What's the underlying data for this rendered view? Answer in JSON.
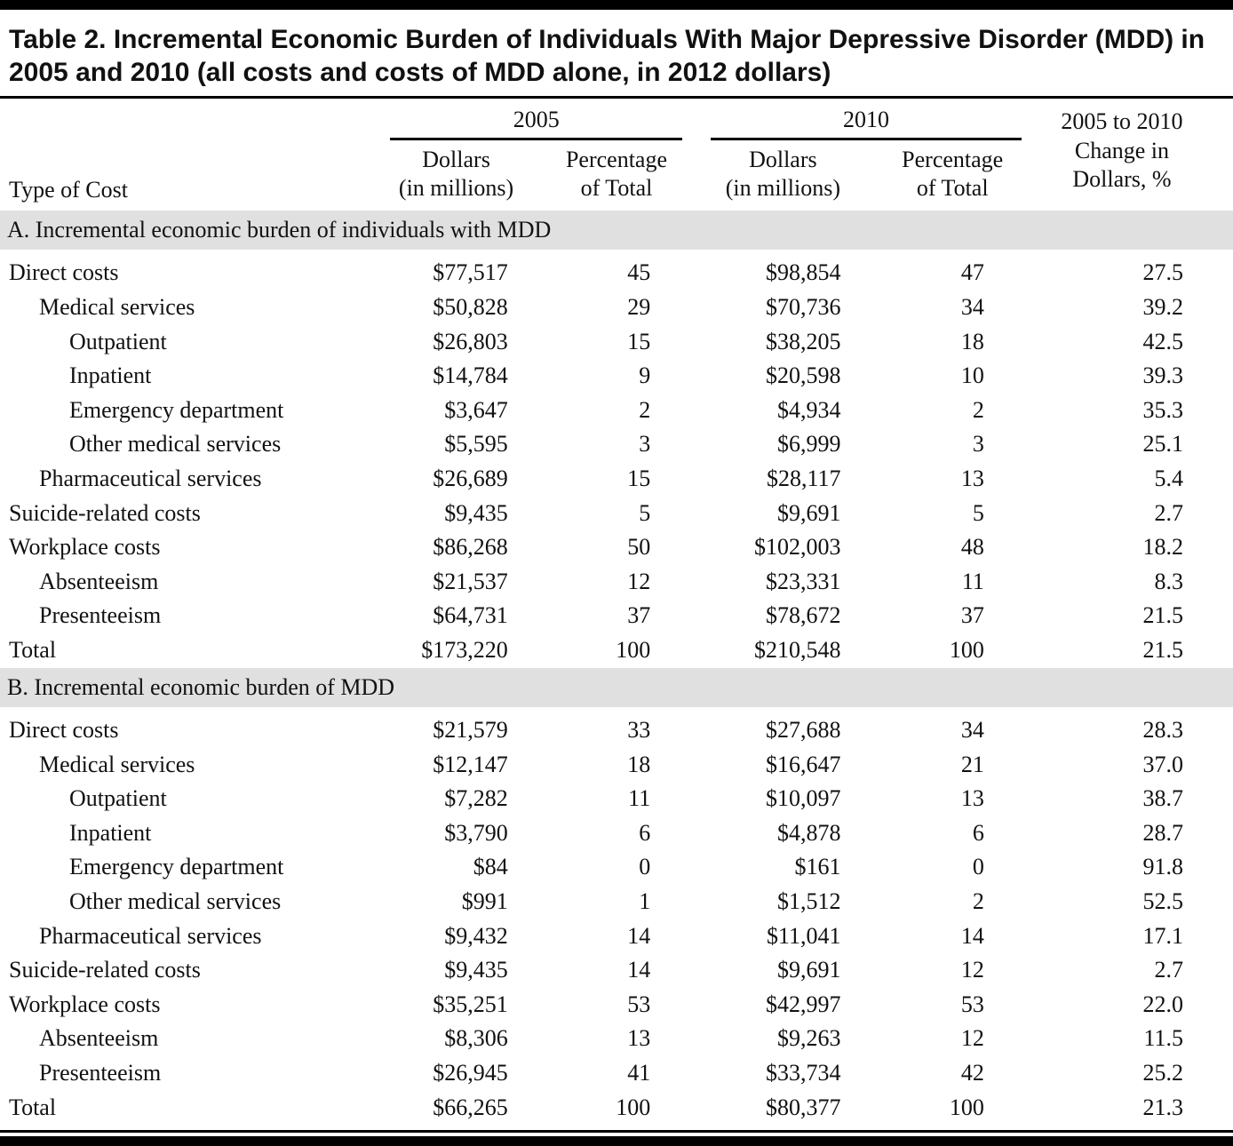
{
  "title": "Table 2. Incremental Economic Burden of Individuals With Major Depressive Disorder (MDD) in 2005 and 2010 (all costs and costs of MDD alone, in 2012 dollars)",
  "table": {
    "headers": {
      "type_of_cost": "Type of Cost",
      "group_2005": "2005",
      "group_2010": "2010",
      "dollars_line1": "Dollars",
      "dollars_line2": "(in millions)",
      "percent_line1": "Percentage",
      "percent_line2": "of Total",
      "change_line1": "2005 to 2010",
      "change_line2": "Change in",
      "change_line3": "Dollars, %"
    },
    "columns": [
      "Type of Cost",
      "2005 Dollars (in millions)",
      "2005 Percentage of Total",
      "2010 Dollars (in millions)",
      "2010 Percentage of Total",
      "2005 to 2010 Change in Dollars, %"
    ],
    "sections": [
      {
        "label": "A. Incremental economic burden of individuals with MDD",
        "rows": [
          {
            "label": "Direct costs",
            "indent": 0,
            "cells": [
              "$77,517",
              "45",
              "$98,854",
              "47",
              "27.5"
            ]
          },
          {
            "label": "Medical services",
            "indent": 1,
            "cells": [
              "$50,828",
              "29",
              "$70,736",
              "34",
              "39.2"
            ]
          },
          {
            "label": "Outpatient",
            "indent": 2,
            "cells": [
              "$26,803",
              "15",
              "$38,205",
              "18",
              "42.5"
            ]
          },
          {
            "label": "Inpatient",
            "indent": 2,
            "cells": [
              "$14,784",
              "9",
              "$20,598",
              "10",
              "39.3"
            ]
          },
          {
            "label": "Emergency department",
            "indent": 2,
            "cells": [
              "$3,647",
              "2",
              "$4,934",
              "2",
              "35.3"
            ]
          },
          {
            "label": "Other medical services",
            "indent": 2,
            "cells": [
              "$5,595",
              "3",
              "$6,999",
              "3",
              "25.1"
            ]
          },
          {
            "label": "Pharmaceutical services",
            "indent": 1,
            "cells": [
              "$26,689",
              "15",
              "$28,117",
              "13",
              "5.4"
            ]
          },
          {
            "label": "Suicide-related costs",
            "indent": 0,
            "cells": [
              "$9,435",
              "5",
              "$9,691",
              "5",
              "2.7"
            ]
          },
          {
            "label": "Workplace costs",
            "indent": 0,
            "cells": [
              "$86,268",
              "50",
              "$102,003",
              "48",
              "18.2"
            ]
          },
          {
            "label": "Absenteeism",
            "indent": 1,
            "cells": [
              "$21,537",
              "12",
              "$23,331",
              "11",
              "8.3"
            ]
          },
          {
            "label": "Presenteeism",
            "indent": 1,
            "cells": [
              "$64,731",
              "37",
              "$78,672",
              "37",
              "21.5"
            ]
          },
          {
            "label": "Total",
            "indent": 0,
            "cells": [
              "$173,220",
              "100",
              "$210,548",
              "100",
              "21.5"
            ]
          }
        ]
      },
      {
        "label": "B. Incremental economic burden of MDD",
        "rows": [
          {
            "label": "Direct costs",
            "indent": 0,
            "cells": [
              "$21,579",
              "33",
              "$27,688",
              "34",
              "28.3"
            ]
          },
          {
            "label": "Medical services",
            "indent": 1,
            "cells": [
              "$12,147",
              "18",
              "$16,647",
              "21",
              "37.0"
            ]
          },
          {
            "label": "Outpatient",
            "indent": 2,
            "cells": [
              "$7,282",
              "11",
              "$10,097",
              "13",
              "38.7"
            ]
          },
          {
            "label": "Inpatient",
            "indent": 2,
            "cells": [
              "$3,790",
              "6",
              "$4,878",
              "6",
              "28.7"
            ]
          },
          {
            "label": "Emergency department",
            "indent": 2,
            "cells": [
              "$84",
              "0",
              "$161",
              "0",
              "91.8"
            ]
          },
          {
            "label": "Other medical services",
            "indent": 2,
            "cells": [
              "$991",
              "1",
              "$1,512",
              "2",
              "52.5"
            ]
          },
          {
            "label": "Pharmaceutical services",
            "indent": 1,
            "cells": [
              "$9,432",
              "14",
              "$11,041",
              "14",
              "17.1"
            ]
          },
          {
            "label": "Suicide-related costs",
            "indent": 0,
            "cells": [
              "$9,435",
              "14",
              "$9,691",
              "12",
              "2.7"
            ]
          },
          {
            "label": "Workplace costs",
            "indent": 0,
            "cells": [
              "$35,251",
              "53",
              "$42,997",
              "53",
              "22.0"
            ]
          },
          {
            "label": "Absenteeism",
            "indent": 1,
            "cells": [
              "$8,306",
              "13",
              "$9,263",
              "12",
              "11.5"
            ]
          },
          {
            "label": "Presenteeism",
            "indent": 1,
            "cells": [
              "$26,945",
              "41",
              "$33,734",
              "42",
              "25.2"
            ]
          },
          {
            "label": "Total",
            "indent": 0,
            "cells": [
              "$66,265",
              "100",
              "$80,377",
              "100",
              "21.3"
            ]
          }
        ]
      }
    ]
  },
  "colors": {
    "section_band": "#e0e0e0",
    "rule": "#000000",
    "text": "#111111"
  }
}
